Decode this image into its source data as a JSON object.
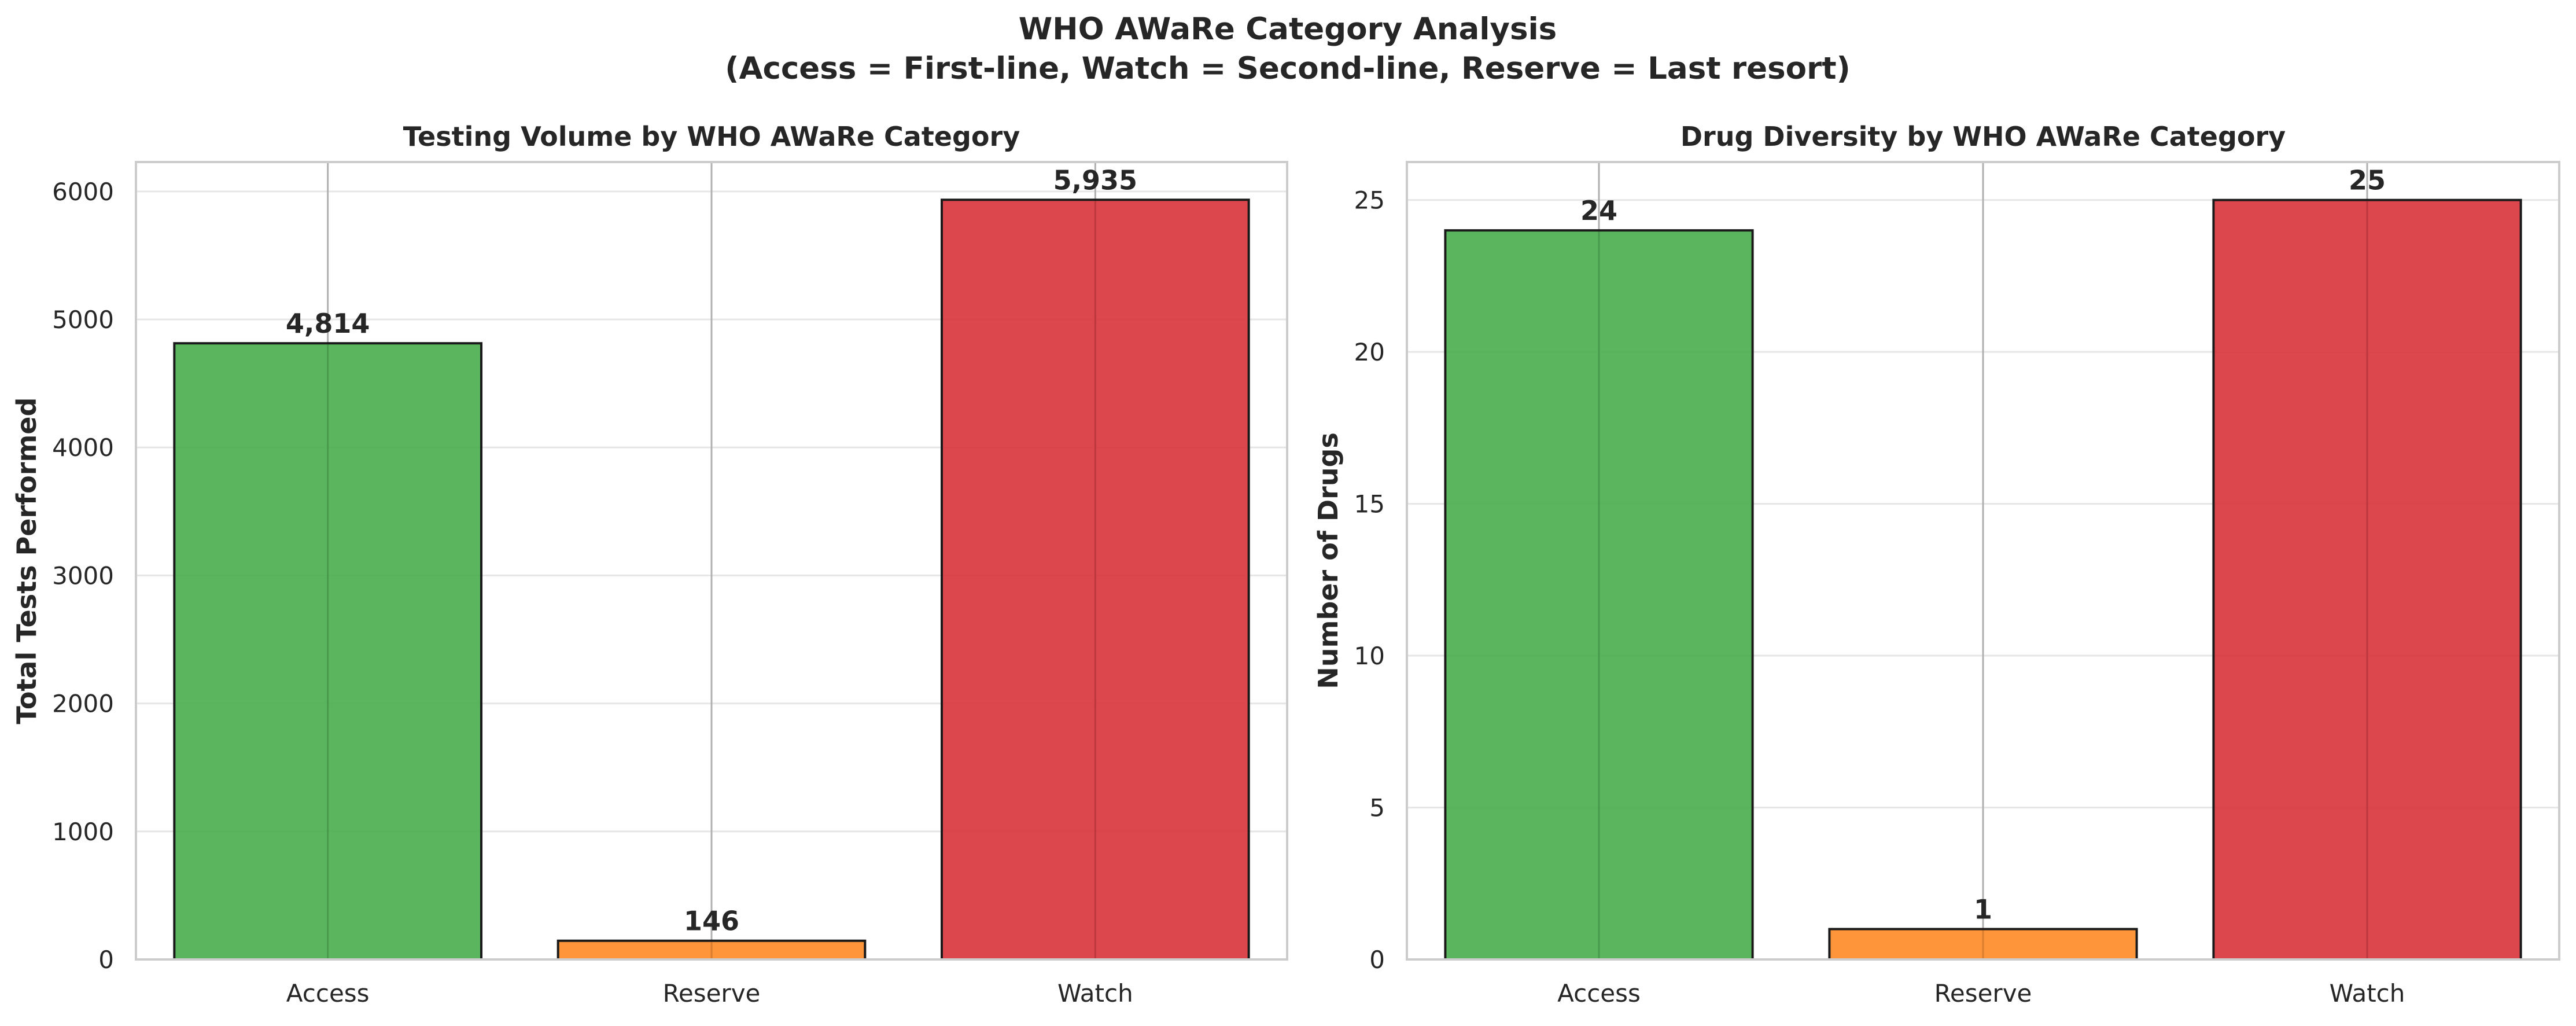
{
  "figure": {
    "title_line1": "WHO AWaRe Category Analysis",
    "title_line2": "(Access = First-line, Watch = Second-line, Reserve = Last resort)"
  },
  "chart_data": [
    {
      "type": "bar",
      "title": "Testing Volume by WHO AWaRe Category",
      "xlabel": "",
      "ylabel": "Total Tests Performed",
      "categories": [
        "Access",
        "Reserve",
        "Watch"
      ],
      "values": [
        4814,
        146,
        5935
      ],
      "value_labels": [
        "4,814",
        "146",
        "5,935"
      ],
      "colors": [
        "#4caf50",
        "#ff8c2a",
        "#d9363e"
      ],
      "ylim": [
        0,
        6230
      ],
      "yticks": [
        0,
        1000,
        2000,
        3000,
        4000,
        5000,
        6000
      ],
      "ytick_labels": [
        "0",
        "1000",
        "2000",
        "3000",
        "4000",
        "5000",
        "6000"
      ],
      "grid": true
    },
    {
      "type": "bar",
      "title": "Drug Diversity by WHO AWaRe Category",
      "xlabel": "",
      "ylabel": "Number of Drugs",
      "categories": [
        "Access",
        "Reserve",
        "Watch"
      ],
      "values": [
        24,
        1,
        25
      ],
      "value_labels": [
        "24",
        "1",
        "25"
      ],
      "colors": [
        "#4caf50",
        "#ff8c2a",
        "#d9363e"
      ],
      "ylim": [
        0,
        26.25
      ],
      "yticks": [
        0,
        5,
        10,
        15,
        20,
        25
      ],
      "ytick_labels": [
        "0",
        "5",
        "10",
        "15",
        "20",
        "25"
      ],
      "grid": true
    }
  ]
}
